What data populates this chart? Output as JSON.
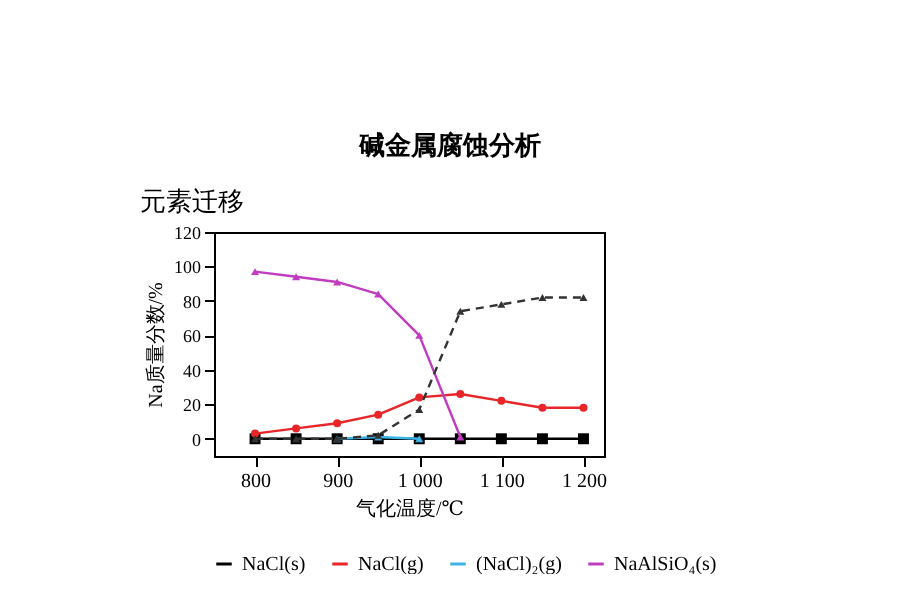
{
  "chart_data": {
    "type": "line",
    "title": "碱金属腐蚀分析",
    "subtitle": "元素迁移",
    "xlabel": "气化温度/℃",
    "ylabel": "Na质量分数/%",
    "x": [
      800,
      850,
      900,
      950,
      1000,
      1050,
      1100,
      1150,
      1200
    ],
    "series": [
      {
        "name": "NaCl(s)",
        "color": "#000000",
        "marker": "square",
        "values": [
          0,
          0,
          0,
          0,
          0,
          0,
          0,
          0,
          0
        ]
      },
      {
        "name": "NaCl(g)",
        "color": "#e8262a",
        "marker": "circle",
        "values": [
          3,
          6,
          9,
          14,
          24,
          26,
          22,
          18,
          18
        ]
      },
      {
        "name": "(NaCl)₂(g)",
        "color": "#3cb4e6",
        "marker": "triangle",
        "values": [
          null,
          null,
          0,
          1,
          0,
          null,
          null,
          null,
          null
        ]
      },
      {
        "name": "NaAlSiO₄(s)",
        "color": "#c03cc0",
        "marker": "triangle",
        "values": [
          97,
          94,
          91,
          84,
          60,
          1,
          null,
          null,
          null
        ]
      },
      {
        "color": "#333333",
        "marker": "triangle",
        "line_style": "dashed",
        "values": [
          0,
          0,
          0,
          2,
          17,
          74,
          78,
          82,
          82
        ]
      }
    ],
    "xlim": [
      750,
      1225
    ],
    "xticks": [
      800,
      900,
      {
        "value": 1000,
        "label": "1 000"
      },
      {
        "value": 1100,
        "label": "1 100"
      },
      {
        "value": 1200,
        "label": "1 200"
      }
    ],
    "ylim": [
      -10,
      120
    ],
    "yticks": [
      0,
      20,
      40,
      60,
      80,
      100,
      120
    ],
    "grid": false,
    "legend": "bottom"
  }
}
